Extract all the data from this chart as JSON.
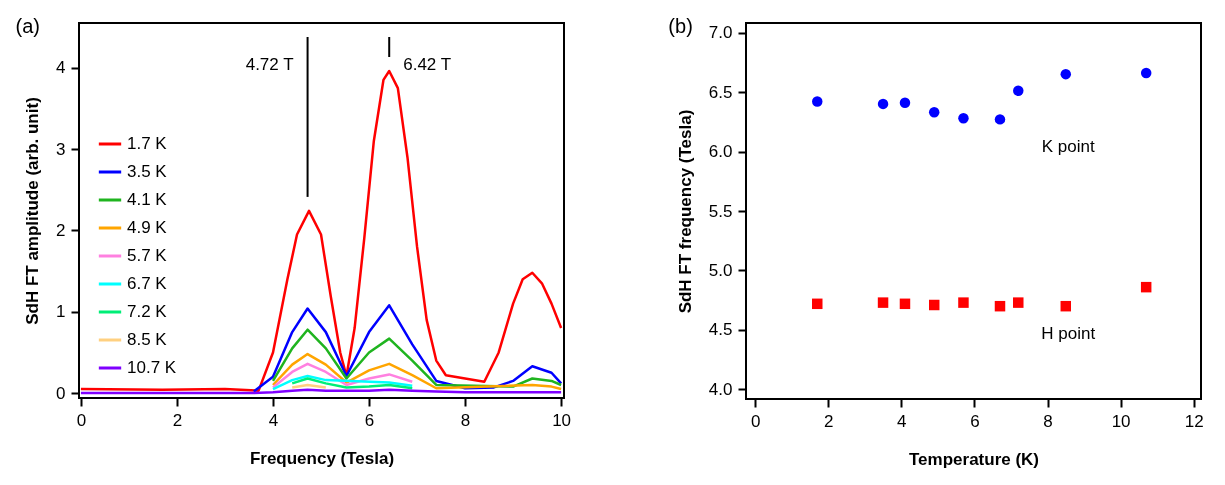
{
  "chart_data": [
    {
      "type": "line",
      "title": "(a)",
      "xlabel": "Frequency (Tesla)",
      "ylabel": "SdH FT amplitude (arb. unit)",
      "xlim": [
        -0.04,
        10.06
      ],
      "ylim": [
        -0.06,
        4.55
      ],
      "xticks": [
        0,
        2,
        4,
        6,
        8,
        10
      ],
      "yticks": [
        0,
        1,
        2,
        3,
        4
      ],
      "grid": false,
      "legend": "left",
      "marker": "none",
      "line_style": "solid",
      "x": [
        0,
        1,
        2,
        3,
        3.6,
        4.0,
        4.4,
        4.72,
        5.1,
        5.53,
        6.0,
        6.42,
        6.9,
        7.4,
        8.0,
        8.6,
        9.0,
        9.4,
        9.8,
        10
      ],
      "ref_lines": [
        {
          "axis": "x",
          "value": 4.72,
          "label": "4.72 T"
        },
        {
          "axis": "x",
          "value": 6.42,
          "label": "6.42 T"
        }
      ],
      "series": [
        {
          "name": "1.7 K",
          "color": "#ff0000",
          "x": [
            0,
            1.7,
            3,
            3.7,
            4.0,
            4.3,
            4.5,
            4.75,
            5.0,
            5.2,
            5.4,
            5.53,
            5.7,
            5.9,
            6.1,
            6.3,
            6.42,
            6.6,
            6.8,
            7.0,
            7.2,
            7.4,
            7.6,
            8.0,
            8.4,
            8.7,
            9.0,
            9.2,
            9.4,
            9.6,
            9.8,
            10
          ],
          "values": [
            0.05,
            0.04,
            0.05,
            0.03,
            0.5,
            1.4,
            1.95,
            2.24,
            1.95,
            1.2,
            0.5,
            0.21,
            0.8,
            1.9,
            3.1,
            3.85,
            3.96,
            3.75,
            2.9,
            1.8,
            0.9,
            0.4,
            0.22,
            0.18,
            0.14,
            0.5,
            1.1,
            1.4,
            1.48,
            1.35,
            1.1,
            0.8
          ]
        },
        {
          "name": "3.5 K",
          "color": "#0000ff",
          "values": [
            null,
            null,
            null,
            null,
            0.02,
            0.2,
            0.75,
            1.04,
            0.75,
            0.21,
            0.75,
            1.08,
            0.6,
            0.15,
            0.06,
            0.07,
            0.15,
            0.33,
            0.25,
            0.12
          ]
        },
        {
          "name": "4.1 K",
          "color": "#1fb41f",
          "values": [
            null,
            null,
            null,
            null,
            null,
            0.15,
            0.55,
            0.78,
            0.55,
            0.18,
            0.5,
            0.67,
            0.4,
            0.1,
            null,
            null,
            0.08,
            0.18,
            0.15,
            0.1
          ]
        },
        {
          "name": "4.9 K",
          "color": "#ffa500",
          "values": [
            null,
            null,
            null,
            null,
            null,
            0.1,
            0.35,
            0.48,
            0.35,
            0.13,
            0.28,
            0.36,
            0.22,
            0.06,
            null,
            null,
            null,
            0.1,
            0.08,
            0.05
          ]
        },
        {
          "name": "5.7 K",
          "color": "#ff80e0",
          "values": [
            null,
            null,
            null,
            null,
            null,
            0.07,
            0.26,
            0.36,
            0.26,
            0.1,
            0.18,
            0.23,
            0.14,
            null,
            null,
            null,
            null,
            null,
            null,
            null
          ]
        },
        {
          "name": "6.7 K",
          "color": "#00ffff",
          "values": [
            null,
            null,
            null,
            null,
            null,
            0.05,
            0.16,
            0.21,
            0.16,
            null,
            null,
            0.13,
            0.09,
            null,
            null,
            null,
            null,
            null,
            null,
            null
          ]
        },
        {
          "name": "7.2 K",
          "color": "#00ee77",
          "values": [
            null,
            null,
            null,
            null,
            null,
            null,
            0.12,
            0.18,
            0.12,
            0.07,
            0.08,
            0.1,
            0.06,
            null,
            null,
            null,
            null,
            null,
            null,
            null
          ]
        },
        {
          "name": "8.5 K",
          "color": "#ffd080",
          "values": [
            null,
            null,
            null,
            null,
            null,
            null,
            0.07,
            0.1,
            0.07,
            null,
            null,
            null,
            null,
            null,
            null,
            null,
            null,
            null,
            null,
            null
          ]
        },
        {
          "name": "10.7 K",
          "color": "#7f00ff",
          "values": [
            0,
            0,
            0,
            0,
            0,
            0.01,
            0.03,
            0.04,
            0.03,
            0.03,
            0.03,
            0.04,
            0.03,
            0.02,
            0.01,
            0.01,
            0.01,
            0.01,
            0.01,
            0.01
          ]
        }
      ]
    },
    {
      "type": "scatter",
      "title": "(b)",
      "xlabel": "Temperature (K)",
      "ylabel": "SdH FT frequency (Tesla)",
      "xlim": [
        -0.25,
        12.2
      ],
      "ylim": [
        3.92,
        7.08
      ],
      "xticks": [
        0,
        2,
        4,
        6,
        8,
        10,
        12
      ],
      "yticks": [
        {
          "value": 4,
          "label": "4.0"
        },
        4.5,
        {
          "value": 5,
          "label": "5.0"
        },
        5.5,
        {
          "value": 6,
          "label": "6.0"
        },
        6.5,
        {
          "value": 7,
          "label": "7.0"
        }
      ],
      "grid": false,
      "x": [
        1.7,
        3.5,
        4.1,
        4.9,
        5.7,
        6.7,
        7.2,
        8.5,
        10.7
      ],
      "series": [
        {
          "name": "K point",
          "color": "#0000ff",
          "marker": "circle",
          "values": [
            6.42,
            6.4,
            6.41,
            6.33,
            6.28,
            6.27,
            6.51,
            6.65,
            6.66
          ]
        },
        {
          "name": "H point",
          "color": "#ff0000",
          "marker": "square",
          "values": [
            4.72,
            4.73,
            4.72,
            4.71,
            4.73,
            4.7,
            4.73,
            4.7,
            4.86
          ]
        }
      ]
    }
  ]
}
